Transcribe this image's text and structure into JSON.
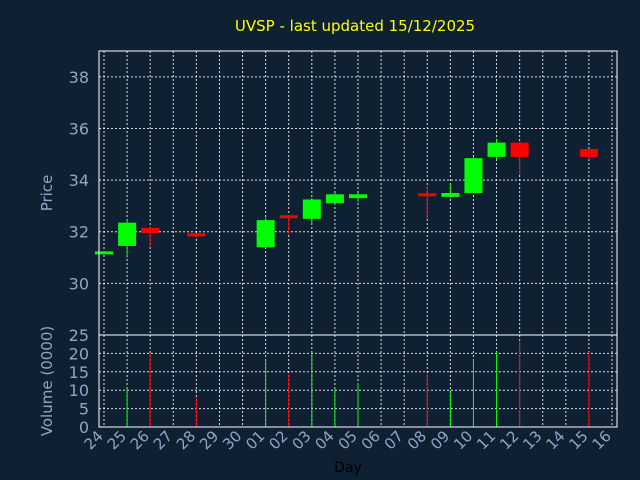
{
  "chart_data": {
    "type": "candlestick",
    "title": "UVSP - last updated 15/12/2025",
    "xlabel": "Day",
    "price_ylabel": "Price",
    "volume_ylabel": "Volume (0000)",
    "x_ticks": [
      "24",
      "25",
      "26",
      "27",
      "28",
      "29",
      "30",
      "01",
      "02",
      "03",
      "04",
      "05",
      "06",
      "07",
      "08",
      "09",
      "10",
      "11",
      "12",
      "13",
      "14",
      "15",
      "16"
    ],
    "price_ylim": [
      28.0,
      39.0
    ],
    "price_ticks": [
      30,
      32,
      34,
      36,
      38
    ],
    "volume_ylim": [
      0,
      25
    ],
    "volume_ticks": [
      0,
      5,
      10,
      15,
      20,
      25
    ],
    "candles": [
      {
        "day": "24",
        "open": 31.2,
        "close": 31.2,
        "high": 31.2,
        "low": 31.2,
        "volume": 0
      },
      {
        "day": "25",
        "open": 31.45,
        "close": 32.35,
        "high": 32.45,
        "low": 31.0,
        "volume": 10.5
      },
      {
        "day": "26",
        "open": 32.15,
        "close": 31.95,
        "high": 32.2,
        "low": 31.4,
        "volume": 20.0
      },
      {
        "day": "28",
        "open": 31.9,
        "close": 31.8,
        "high": 31.95,
        "low": 31.75,
        "volume": 8.0
      },
      {
        "day": "01",
        "open": 31.4,
        "close": 32.45,
        "high": 32.55,
        "low": 31.4,
        "volume": 18.5
      },
      {
        "day": "02",
        "open": 32.6,
        "close": 32.55,
        "high": 32.65,
        "low": 31.9,
        "volume": 14.5
      },
      {
        "day": "03",
        "open": 32.5,
        "close": 33.25,
        "high": 33.3,
        "low": 32.3,
        "volume": 20.5
      },
      {
        "day": "04",
        "open": 33.1,
        "close": 33.45,
        "high": 33.5,
        "low": 33.05,
        "volume": 10.5
      },
      {
        "day": "05",
        "open": 33.3,
        "close": 33.45,
        "high": 33.5,
        "low": 33.15,
        "volume": 12.0
      },
      {
        "day": "08",
        "open": 33.45,
        "close": 33.35,
        "high": 33.75,
        "low": 32.5,
        "volume": 14.5
      },
      {
        "day": "09",
        "open": 33.35,
        "close": 33.5,
        "high": 33.85,
        "low": 33.3,
        "volume": 10.0
      },
      {
        "day": "10",
        "open": 33.5,
        "close": 34.85,
        "high": 34.9,
        "low": 33.5,
        "volume": 18.5
      },
      {
        "day": "11",
        "open": 34.9,
        "close": 35.45,
        "high": 35.6,
        "low": 34.8,
        "volume": 20.5
      },
      {
        "day": "12",
        "open": 35.45,
        "close": 34.9,
        "high": 35.5,
        "low": 34.2,
        "volume": 23.5
      },
      {
        "day": "15",
        "open": 35.2,
        "close": 34.9,
        "high": 35.2,
        "low": 34.8,
        "volume": 20.5
      }
    ],
    "colors": {
      "background": "#0f2033",
      "up": "#00ff00",
      "down": "#ff0000",
      "title": "#ffff00",
      "axis_text": "#8fa7c6",
      "grid": "#ffffff"
    }
  }
}
